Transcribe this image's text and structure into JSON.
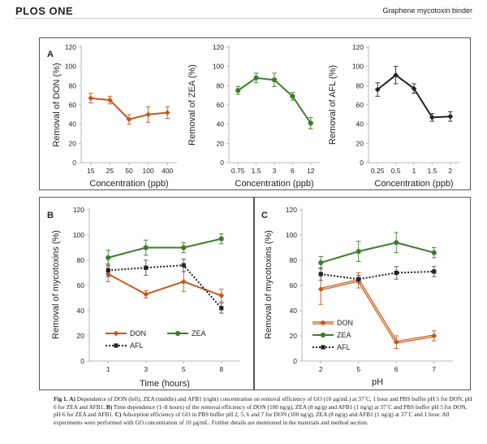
{
  "header": {
    "journal": "PLOS ONE",
    "running_title": "Graphene mycotoxin binder"
  },
  "colors": {
    "don": "#c6561d",
    "zea": "#3e7d2a",
    "afl": "#222222",
    "afl_line": "#555555",
    "axis": "#b8b8b8",
    "frame": "#555555",
    "don_fill": "#f3c8a5"
  },
  "chart_data": [
    {
      "panel_label": "A",
      "type": "line",
      "ylabel": "Removal of DON (%)",
      "xlabel": "Concentration (ppb)",
      "ylim": [
        0,
        120
      ],
      "yticks": [
        0,
        20,
        40,
        60,
        80,
        100,
        120
      ],
      "categories": [
        "15",
        "25",
        "50",
        "100",
        "400"
      ],
      "series": [
        {
          "name": "DON",
          "values": [
            67,
            65,
            45,
            50,
            52
          ],
          "errors": [
            5,
            4,
            5,
            8,
            6
          ],
          "color_key": "don",
          "marker": "diamond",
          "style": "solid"
        }
      ]
    },
    {
      "panel_label": "",
      "type": "line",
      "ylabel": "Removal of ZEA (%)",
      "xlabel": "Concentration (ppb)",
      "ylim": [
        0,
        120
      ],
      "yticks": [
        0,
        20,
        40,
        60,
        80,
        100,
        120
      ],
      "categories": [
        "0.75",
        "1.5",
        "3",
        "6",
        "12"
      ],
      "series": [
        {
          "name": "ZEA",
          "values": [
            75,
            88,
            86,
            69,
            41
          ],
          "errors": [
            4,
            5,
            7,
            4,
            6
          ],
          "color_key": "zea",
          "marker": "circle",
          "style": "solid"
        }
      ]
    },
    {
      "panel_label": "",
      "type": "line",
      "ylabel": "Removal of AFL (%)",
      "xlabel": "Concentration (ppb)",
      "ylim": [
        0,
        120
      ],
      "yticks": [
        0,
        20,
        40,
        60,
        80,
        100,
        120
      ],
      "categories": [
        "0.25",
        "0.5",
        "1",
        "1.5",
        "2"
      ],
      "series": [
        {
          "name": "AFL",
          "values": [
            76,
            91,
            77,
            47,
            48
          ],
          "errors": [
            7,
            9,
            5,
            4,
            5
          ],
          "color_key": "afl",
          "marker": "diamond",
          "style": "solid"
        }
      ]
    },
    {
      "panel_label": "B",
      "type": "line",
      "ylabel": "Removal of mycotoxins (%)",
      "xlabel": "Time (hours)",
      "ylim": [
        0,
        120
      ],
      "yticks": [
        0,
        20,
        40,
        60,
        80,
        100,
        120
      ],
      "categories": [
        "1",
        "3",
        "5",
        "8"
      ],
      "series": [
        {
          "name": "DON",
          "values": [
            69,
            53,
            63,
            52
          ],
          "errors": [
            6,
            3,
            8,
            5
          ],
          "color_key": "don",
          "marker": "diamond",
          "style": "solid"
        },
        {
          "name": "ZEA",
          "values": [
            82,
            90,
            90,
            97
          ],
          "errors": [
            6,
            6,
            4,
            4
          ],
          "color_key": "zea",
          "marker": "circle",
          "style": "solid"
        },
        {
          "name": "AFL",
          "values": [
            72,
            74,
            76,
            42
          ],
          "errors": [
            5,
            6,
            5,
            4
          ],
          "color_key": "afl",
          "marker": "square",
          "style": "dotted"
        }
      ],
      "legend": [
        "DON",
        "ZEA",
        "AFL"
      ]
    },
    {
      "panel_label": "C",
      "type": "line",
      "ylabel": "Removal of mycotoxins (%)",
      "xlabel": "pH",
      "ylim": [
        0,
        120
      ],
      "yticks": [
        0,
        20,
        40,
        60,
        80,
        100,
        120
      ],
      "categories": [
        "2",
        "5",
        "6",
        "7"
      ],
      "series": [
        {
          "name": "DON",
          "values": [
            57,
            64,
            15,
            20
          ],
          "errors": [
            12,
            6,
            5,
            4
          ],
          "color_key": "don",
          "marker": "diamond",
          "style": "double"
        },
        {
          "name": "ZEA",
          "values": [
            78,
            87,
            94,
            86
          ],
          "errors": [
            5,
            8,
            8,
            4
          ],
          "color_key": "zea",
          "marker": "circle",
          "style": "solid"
        },
        {
          "name": "AFL",
          "values": [
            69,
            65,
            70,
            71
          ],
          "errors": [
            5,
            3,
            5,
            4
          ],
          "color_key": "afl",
          "marker": "square",
          "style": "dotted"
        }
      ],
      "legend": [
        "DON",
        "ZEA",
        "AFL"
      ]
    }
  ],
  "caption": {
    "fig_label": "Fig 1.",
    "a_label": "A)",
    "a_text": "Dependence of DON (left), ZEA (middle) and AFB1 (right) concentration on removal efficiency of GO (10 μg/mL) at 37˚C, 1 hour and PBS buffer pH 5 for DON, pH 6 for ZEA and AFB1.",
    "b_label": "B)",
    "b_text": "Time dependence (1–8 hours) of the removal efficiency of DON (100 ng/g), ZEA (8 ng/g) and AFB1 (1 ng/g) at 37˚C and PBS buffer pH 5 for DON, pH 6 for ZEA and AFB1.",
    "c_label": "C)",
    "c_text": "Adsorption efficiency of GO in PBS buffer pH 2, 5, 6 and 7 for DON (100 ng/g), ZEA (8 ng/g) and AFB1 (1 ng/g) at 37˚C and 1 hour. All experiments were performed with GO concentration of 10 μg/mL. Further details are mentioned in the materials and method section."
  }
}
